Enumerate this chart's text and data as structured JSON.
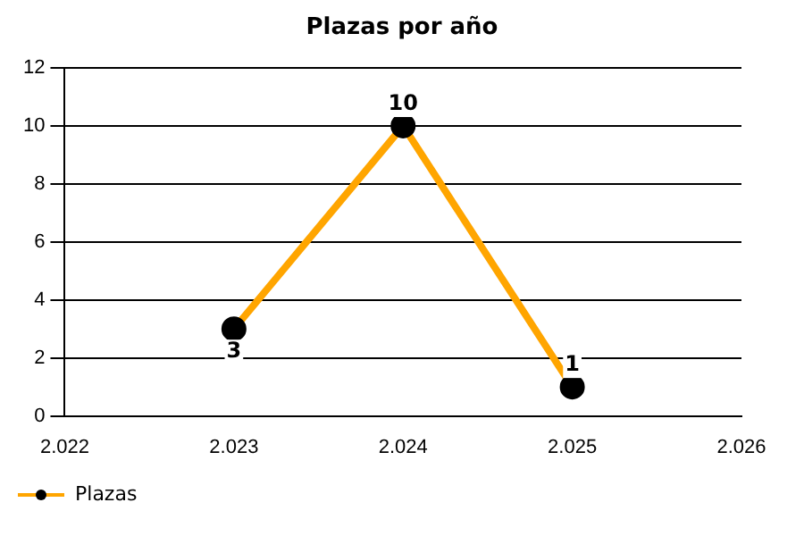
{
  "chart_data": {
    "type": "line",
    "title": "Plazas por año",
    "x": [
      2023,
      2024,
      2025
    ],
    "series": [
      {
        "name": "Plazas",
        "color": "#ffa500",
        "values": [
          3,
          10,
          1
        ]
      }
    ],
    "xlim": [
      2022,
      2026
    ],
    "xticks": [
      {
        "value": 2022,
        "label": "2.022"
      },
      {
        "value": 2023,
        "label": "2.023"
      },
      {
        "value": 2024,
        "label": "2.024"
      },
      {
        "value": 2025,
        "label": "2.025"
      },
      {
        "value": 2026,
        "label": "2.026"
      }
    ],
    "ylim": [
      0,
      12
    ],
    "yticks": [
      0,
      2,
      4,
      6,
      8,
      10,
      12
    ],
    "grid": "y",
    "legend": "bottom left",
    "marker": "circle",
    "line_style": "solid",
    "data_labels": true
  }
}
